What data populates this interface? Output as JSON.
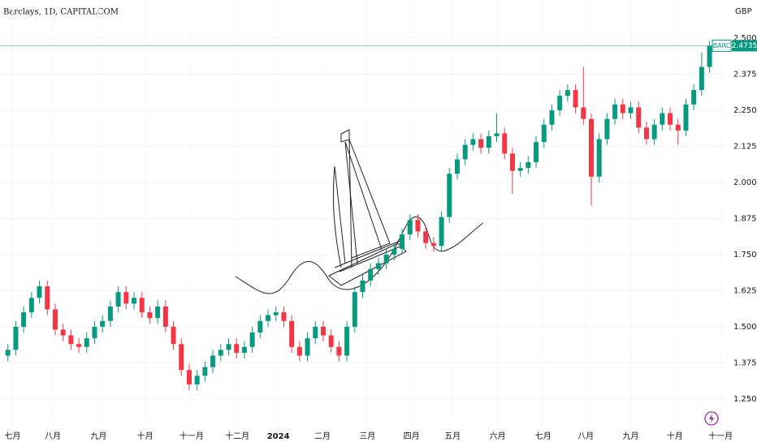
{
  "chart_data": {
    "type": "candlestick",
    "title": "Barclays, 1D, CAPITALCOM",
    "currency": "GBP",
    "symbol": "BARC",
    "last_price": {
      "value": 2.4735,
      "label": "2.4735"
    },
    "up_color": "#089981",
    "down_color": "#f23645",
    "grid": true,
    "xlim": [
      -1,
      91
    ],
    "xticks": [
      {
        "value": 0.6,
        "label": "七月"
      },
      {
        "value": 5.7,
        "label": "八月"
      },
      {
        "value": 11.5,
        "label": "九月"
      },
      {
        "value": 17.4,
        "label": "十月"
      },
      {
        "value": 23.3,
        "label": "十一月"
      },
      {
        "value": 29.1,
        "label": "十二月"
      },
      {
        "value": 34.3,
        "label": "2024"
      },
      {
        "value": 39.9,
        "label": "二月"
      },
      {
        "value": 45.6,
        "label": "三月"
      },
      {
        "value": 51.2,
        "label": "四月"
      },
      {
        "value": 56.4,
        "label": "五月"
      },
      {
        "value": 62.1,
        "label": "六月"
      },
      {
        "value": 67.9,
        "label": "七月"
      },
      {
        "value": 73.3,
        "label": "八月"
      },
      {
        "value": 79.0,
        "label": "九月"
      },
      {
        "value": 84.6,
        "label": "十月"
      },
      {
        "value": 90.4,
        "label": "十一月"
      }
    ],
    "ylim": [
      1.157,
      2.632
    ],
    "yticks": [
      {
        "value": 1.25,
        "label": "1.2500"
      },
      {
        "value": 1.375,
        "label": "1.3750"
      },
      {
        "value": 1.5,
        "label": "1.5000"
      },
      {
        "value": 1.625,
        "label": "1.6250"
      },
      {
        "value": 1.75,
        "label": "1.7500"
      },
      {
        "value": 1.875,
        "label": "1.8750"
      },
      {
        "value": 2.0,
        "label": "2.0000"
      },
      {
        "value": 2.125,
        "label": "2.1250"
      },
      {
        "value": 2.25,
        "label": "2.2500"
      },
      {
        "value": 2.375,
        "label": "2.3750"
      },
      {
        "value": 2.5,
        "label": "2.5000"
      }
    ],
    "open": [
      1.4,
      1.42,
      1.5,
      1.55,
      1.6,
      1.64,
      1.56,
      1.49,
      1.47,
      1.44,
      1.43,
      1.46,
      1.5,
      1.52,
      1.57,
      1.62,
      1.58,
      1.6,
      1.55,
      1.53,
      1.57,
      1.5,
      1.44,
      1.35,
      1.3,
      1.33,
      1.36,
      1.4,
      1.42,
      1.44,
      1.41,
      1.43,
      1.48,
      1.52,
      1.54,
      1.55,
      1.52,
      1.43,
      1.4,
      1.46,
      1.5,
      1.47,
      1.43,
      1.4,
      1.5,
      1.62,
      1.66,
      1.7,
      1.72,
      1.75,
      1.77,
      1.82,
      1.87,
      1.83,
      1.79,
      1.78,
      1.88,
      2.03,
      2.08,
      2.13,
      2.15,
      2.12,
      2.16,
      2.17,
      2.1,
      2.04,
      2.05,
      2.07,
      2.14,
      2.2,
      2.25,
      2.3,
      2.32,
      2.26,
      2.22,
      2.02,
      2.15,
      2.22,
      2.27,
      2.24,
      2.26,
      2.19,
      2.15,
      2.2,
      2.24,
      2.2,
      2.18,
      2.27,
      2.32,
      2.4
    ],
    "high": [
      1.44,
      1.52,
      1.57,
      1.62,
      1.66,
      1.66,
      1.58,
      1.51,
      1.49,
      1.46,
      1.48,
      1.52,
      1.54,
      1.59,
      1.64,
      1.64,
      1.62,
      1.62,
      1.57,
      1.59,
      1.59,
      1.52,
      1.46,
      1.37,
      1.35,
      1.38,
      1.42,
      1.44,
      1.46,
      1.46,
      1.45,
      1.5,
      1.54,
      1.56,
      1.57,
      1.57,
      1.54,
      1.45,
      1.48,
      1.52,
      1.52,
      1.49,
      1.45,
      1.52,
      1.64,
      1.68,
      1.72,
      1.74,
      1.77,
      1.79,
      1.84,
      1.89,
      1.89,
      1.85,
      1.81,
      1.9,
      2.05,
      2.1,
      2.15,
      2.17,
      2.17,
      2.18,
      2.24,
      2.19,
      2.12,
      2.07,
      2.09,
      2.16,
      2.22,
      2.27,
      2.32,
      2.34,
      2.34,
      2.4,
      2.24,
      2.17,
      2.24,
      2.29,
      2.29,
      2.28,
      2.28,
      2.21,
      2.22,
      2.26,
      2.26,
      2.22,
      2.29,
      2.34,
      2.45,
      2.49
    ],
    "low": [
      1.38,
      1.4,
      1.48,
      1.53,
      1.58,
      1.54,
      1.47,
      1.45,
      1.42,
      1.41,
      1.41,
      1.44,
      1.48,
      1.5,
      1.55,
      1.56,
      1.56,
      1.53,
      1.51,
      1.51,
      1.48,
      1.42,
      1.33,
      1.28,
      1.28,
      1.31,
      1.34,
      1.38,
      1.4,
      1.39,
      1.39,
      1.41,
      1.46,
      1.5,
      1.52,
      1.5,
      1.41,
      1.38,
      1.38,
      1.44,
      1.45,
      1.41,
      1.38,
      1.38,
      1.48,
      1.6,
      1.64,
      1.68,
      1.7,
      1.73,
      1.75,
      1.8,
      1.81,
      1.77,
      1.76,
      1.76,
      1.86,
      2.01,
      2.06,
      2.11,
      2.1,
      2.1,
      2.14,
      2.08,
      1.96,
      2.02,
      2.03,
      2.05,
      2.12,
      2.18,
      2.23,
      2.28,
      2.24,
      2.2,
      1.92,
      2.0,
      2.13,
      2.2,
      2.22,
      2.22,
      2.17,
      2.13,
      2.13,
      2.18,
      2.18,
      2.13,
      2.16,
      2.25,
      2.3,
      2.38
    ],
    "close": [
      1.42,
      1.5,
      1.55,
      1.6,
      1.64,
      1.56,
      1.49,
      1.47,
      1.44,
      1.43,
      1.46,
      1.5,
      1.52,
      1.57,
      1.62,
      1.58,
      1.6,
      1.55,
      1.53,
      1.57,
      1.5,
      1.44,
      1.35,
      1.3,
      1.33,
      1.36,
      1.4,
      1.42,
      1.44,
      1.41,
      1.43,
      1.48,
      1.52,
      1.54,
      1.55,
      1.52,
      1.43,
      1.4,
      1.46,
      1.5,
      1.47,
      1.43,
      1.4,
      1.5,
      1.62,
      1.66,
      1.7,
      1.72,
      1.75,
      1.77,
      1.82,
      1.87,
      1.83,
      1.79,
      1.78,
      1.88,
      2.03,
      2.08,
      2.13,
      2.15,
      2.12,
      2.16,
      2.17,
      2.1,
      2.04,
      2.05,
      2.07,
      2.14,
      2.2,
      2.25,
      2.3,
      2.32,
      2.26,
      2.22,
      2.02,
      2.15,
      2.22,
      2.27,
      2.24,
      2.26,
      2.19,
      2.15,
      2.2,
      2.24,
      2.2,
      2.18,
      2.27,
      2.32,
      2.4,
      2.4735
    ]
  }
}
